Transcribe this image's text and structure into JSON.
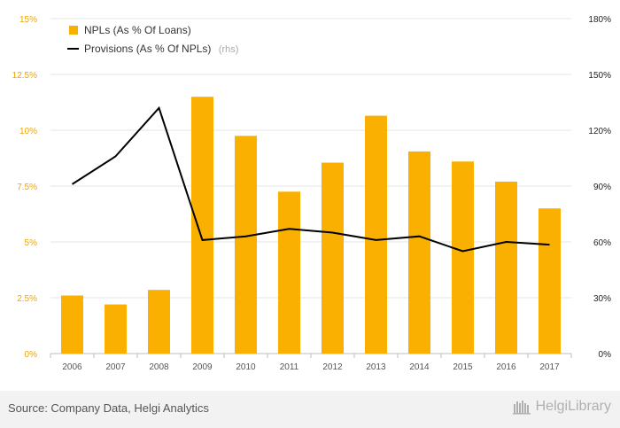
{
  "chart_data": {
    "type": "bar",
    "categories": [
      "2006",
      "2007",
      "2008",
      "2009",
      "2010",
      "2011",
      "2012",
      "2013",
      "2014",
      "2015",
      "2016",
      "2017"
    ],
    "series": [
      {
        "name": "NPLs (As % Of Loans)",
        "type": "bar",
        "axis": "left",
        "color": "#f9b000",
        "values": [
          2.6,
          2.2,
          2.85,
          11.5,
          9.75,
          7.25,
          8.55,
          10.65,
          9.05,
          8.6,
          7.7,
          6.5
        ]
      },
      {
        "name": "Provisions (As % Of NPLs)",
        "legend_suffix": "(rhs)",
        "type": "line",
        "axis": "right",
        "color": "#000000",
        "values": [
          91,
          106,
          132,
          61,
          63,
          67,
          65,
          61,
          63,
          55,
          60,
          58.5
        ]
      }
    ],
    "left_axis": {
      "ylim": [
        0,
        15
      ],
      "ticks": [
        "0%",
        "2.5%",
        "5%",
        "7.5%",
        "10%",
        "12.5%",
        "15%"
      ],
      "tick_color": "#f0a500"
    },
    "right_axis": {
      "ylim": [
        0,
        180
      ],
      "ticks": [
        "0%",
        "30%",
        "60%",
        "90%",
        "120%",
        "150%",
        "180%"
      ]
    },
    "grid": true,
    "legend_position": "top-left"
  },
  "footer": {
    "source": "Source: Company Data, Helgi Analytics",
    "logo_text": "HelgiLibrary",
    "logo_icon": "helgi-library-logo-icon"
  }
}
